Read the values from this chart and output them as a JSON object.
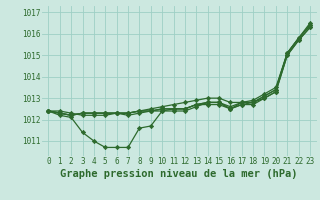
{
  "x": [
    0,
    1,
    2,
    3,
    4,
    5,
    6,
    7,
    8,
    9,
    10,
    11,
    12,
    13,
    14,
    15,
    16,
    17,
    18,
    19,
    20,
    21,
    22,
    23
  ],
  "line_steep": [
    1012.4,
    1012.4,
    1012.3,
    1012.2,
    1012.2,
    1012.2,
    1012.3,
    1012.3,
    1012.4,
    1012.5,
    1012.6,
    1012.7,
    1012.8,
    1012.9,
    1013.0,
    1013.0,
    1012.8,
    1012.8,
    1012.9,
    1013.2,
    1013.5,
    1015.1,
    1015.8,
    1016.5
  ],
  "line_dip": [
    1012.4,
    1012.2,
    1012.1,
    1011.4,
    1011.0,
    1010.7,
    1010.7,
    1010.7,
    1011.6,
    1011.7,
    1012.4,
    1012.4,
    1012.4,
    1012.6,
    1012.8,
    1012.8,
    1012.5,
    1012.8,
    1012.8,
    1013.1,
    1013.4,
    1015.1,
    1015.8,
    1016.4
  ],
  "line_mid1": [
    1012.4,
    1012.3,
    1012.2,
    1012.3,
    1012.3,
    1012.3,
    1012.3,
    1012.3,
    1012.4,
    1012.4,
    1012.5,
    1012.5,
    1012.5,
    1012.7,
    1012.8,
    1012.8,
    1012.6,
    1012.8,
    1012.8,
    1013.1,
    1013.4,
    1015.1,
    1015.8,
    1016.4
  ],
  "line_mid2": [
    1012.4,
    1012.3,
    1012.2,
    1012.3,
    1012.3,
    1012.3,
    1012.3,
    1012.3,
    1012.4,
    1012.4,
    1012.5,
    1012.5,
    1012.5,
    1012.7,
    1012.8,
    1012.8,
    1012.5,
    1012.7,
    1012.8,
    1013.0,
    1013.3,
    1015.0,
    1015.7,
    1016.3
  ],
  "line_flat": [
    1012.4,
    1012.3,
    1012.2,
    1012.3,
    1012.3,
    1012.3,
    1012.3,
    1012.2,
    1012.3,
    1012.4,
    1012.4,
    1012.5,
    1012.5,
    1012.7,
    1012.7,
    1012.7,
    1012.5,
    1012.7,
    1012.7,
    1013.0,
    1013.3,
    1015.0,
    1015.7,
    1016.3
  ],
  "line_color": "#2d6a2d",
  "bg_color": "#cce8e0",
  "grid_color": "#9ecfc5",
  "ylabel_ticks": [
    1011,
    1012,
    1013,
    1014,
    1015,
    1016,
    1017
  ],
  "ylim": [
    1010.3,
    1017.3
  ],
  "xlim": [
    -0.6,
    23.6
  ],
  "xlabel": "Graphe pression niveau de la mer (hPa)",
  "marker": "D",
  "marker_size": 2.2,
  "lw": 0.9,
  "xlabel_fontsize": 7.5,
  "tick_fontsize": 5.5
}
